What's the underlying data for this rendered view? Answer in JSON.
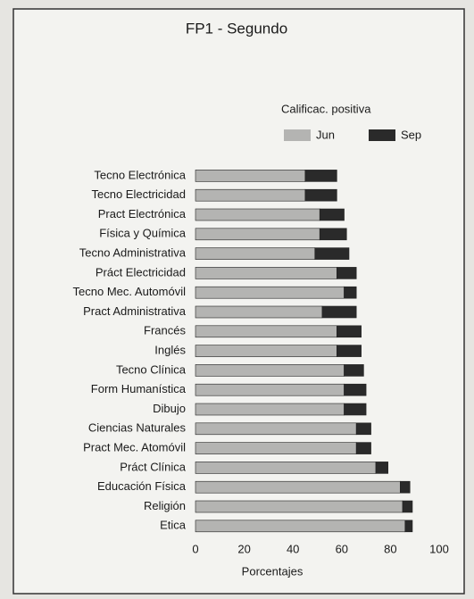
{
  "chart_data": {
    "type": "stacked_barh",
    "title": "FP1 - Segundo",
    "legend_title": "Calificac. positiva",
    "categories": [
      "Tecno Electrónica",
      "Tecno Electricidad",
      "Pract Electrónica",
      "Física y Química",
      "Tecno Administrativa",
      "Práct Electricidad",
      "Tecno Mec. Automóvil",
      "Pract Administrativa",
      "Francés",
      "Inglés",
      "Tecno Clínica",
      "Form Humanística",
      "Dibujo",
      "Ciencias Naturales",
      "Pract Mec. Atomóvil",
      "Práct Clínica",
      "Educación Física",
      "Religión",
      "Etica"
    ],
    "series": [
      {
        "name": "Jun",
        "color": "#b4b4b2",
        "values": [
          45,
          45,
          51,
          51,
          49,
          58,
          61,
          52,
          58,
          58,
          61,
          61,
          61,
          66,
          66,
          74,
          84,
          85,
          86
        ]
      },
      {
        "name": "Sep",
        "color": "#2a2a2a",
        "values": [
          13,
          13,
          10,
          11,
          14,
          8,
          5,
          14,
          10,
          10,
          8,
          9,
          9,
          6,
          6,
          5,
          4,
          4,
          3
        ]
      }
    ],
    "xlabel": "Porcentajes",
    "xlim": [
      0,
      100
    ],
    "xticks": [
      0,
      20,
      40,
      60,
      80,
      100
    ],
    "grid": false
  }
}
